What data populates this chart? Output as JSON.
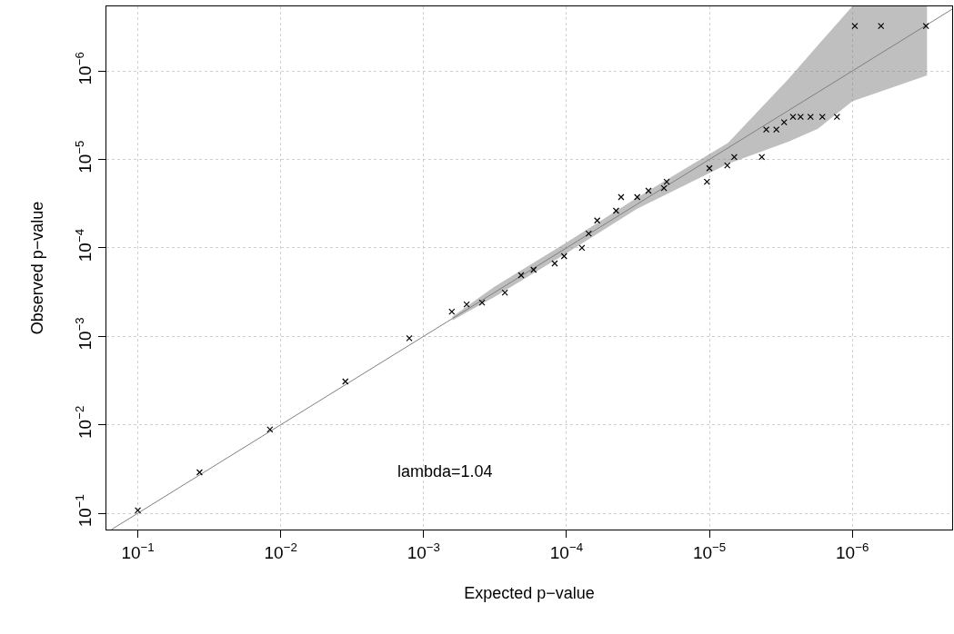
{
  "chart_data": {
    "type": "scatter",
    "xlabel": "Expected p−value",
    "ylabel": "Observed p−value",
    "log": "xy",
    "grid": true,
    "xlim": [
      0.166,
      2e-07
    ],
    "ylim": [
      0.153,
      1.86e-07
    ],
    "xticks": [
      {
        "value": 0.1,
        "label": "10$^{−1}$"
      },
      {
        "value": 0.01,
        "label": "10$^{−2}$"
      },
      {
        "value": 0.001,
        "label": "10$^{−3}$"
      },
      {
        "value": 0.0001,
        "label": "10$^{−4}$"
      },
      {
        "value": 1e-05,
        "label": "10$^{−5}$"
      },
      {
        "value": 1e-06,
        "label": "10$^{−6}$"
      }
    ],
    "yticks": [
      {
        "value": 0.1,
        "label": "10$^{−1}$"
      },
      {
        "value": 0.01,
        "label": "10$^{−2}$"
      },
      {
        "value": 0.001,
        "label": "10$^{−3}$"
      },
      {
        "value": 0.0001,
        "label": "10$^{−4}$"
      },
      {
        "value": 1e-05,
        "label": "10$^{−5}$"
      },
      {
        "value": 1e-06,
        "label": "10$^{−6}$"
      }
    ],
    "annotations": [
      "lambda=1.04"
    ],
    "series": [
      {
        "type": "line",
        "color": "#808080",
        "marker": "none",
        "line_style": "solid",
        "x": [
          0.153,
          0.00063,
          0.00032,
          0.0001,
          3.2e-05,
          7.4e-06,
          2.8e-06,
          1.74e-06,
          1e-06,
          3e-07,
          2e-07
        ],
        "values": [
          0.153,
          0.00063,
          0.00032,
          0.0001,
          3.2e-05,
          7.4e-06,
          2.8e-06,
          1.74e-06,
          1e-06,
          3e-07,
          2e-07
        ],
        "lower": [
          null,
          0.00066,
          0.00036,
          0.000115,
          3.6e-05,
          1.12e-05,
          6.3e-06,
          4.5e-06,
          2.2e-06,
          1.12e-06,
          null
        ],
        "upper": [
          null,
          0.0006,
          0.000275,
          8.7e-05,
          2.7e-05,
          6.5e-06,
          1.23e-06,
          5.1e-07,
          1.86e-07,
          1.86e-07,
          null
        ]
      },
      {
        "color": "#000000",
        "marker": "cross",
        "x": [
          0.1,
          0.037,
          0.0119,
          0.00353,
          0.00126,
          0.000635,
          0.0005,
          0.00039,
          0.00027,
          0.000208,
          0.00017,
          0.000121,
          0.000104,
          7.8e-05,
          7e-05,
          6.1e-05,
          4.5e-05,
          4.15e-05,
          3.2e-05,
          2.67e-05,
          2.08e-05,
          1.99e-05,
          1.04e-05,
          1e-05,
          7.5e-06,
          6.7e-06,
          4.3e-06,
          4e-06,
          3.4e-06,
          3e-06,
          2.6e-06,
          2.3e-06,
          1.96e-06,
          1.62e-06,
          1.28e-06,
          9.6e-07,
          6.3e-07,
          3.05e-07
        ],
        "values": [
          0.093,
          0.0345,
          0.0113,
          0.00324,
          0.00105,
          0.000526,
          0.000435,
          0.000415,
          0.00032,
          0.000204,
          0.000177,
          0.00015,
          0.000124,
          0.0001,
          6.9e-05,
          4.9e-05,
          3.8e-05,
          2.67e-05,
          2.67e-05,
          2.26e-05,
          2.11e-05,
          1.79e-05,
          1.79e-05,
          1.26e-05,
          1.17e-05,
          9.4e-06,
          9.4e-06,
          4.6e-06,
          4.6e-06,
          3.8e-06,
          3.3e-06,
          3.3e-06,
          3.3e-06,
          3.3e-06,
          3.3e-06,
          3.1e-07,
          3.1e-07,
          3.1e-07
        ]
      }
    ]
  }
}
